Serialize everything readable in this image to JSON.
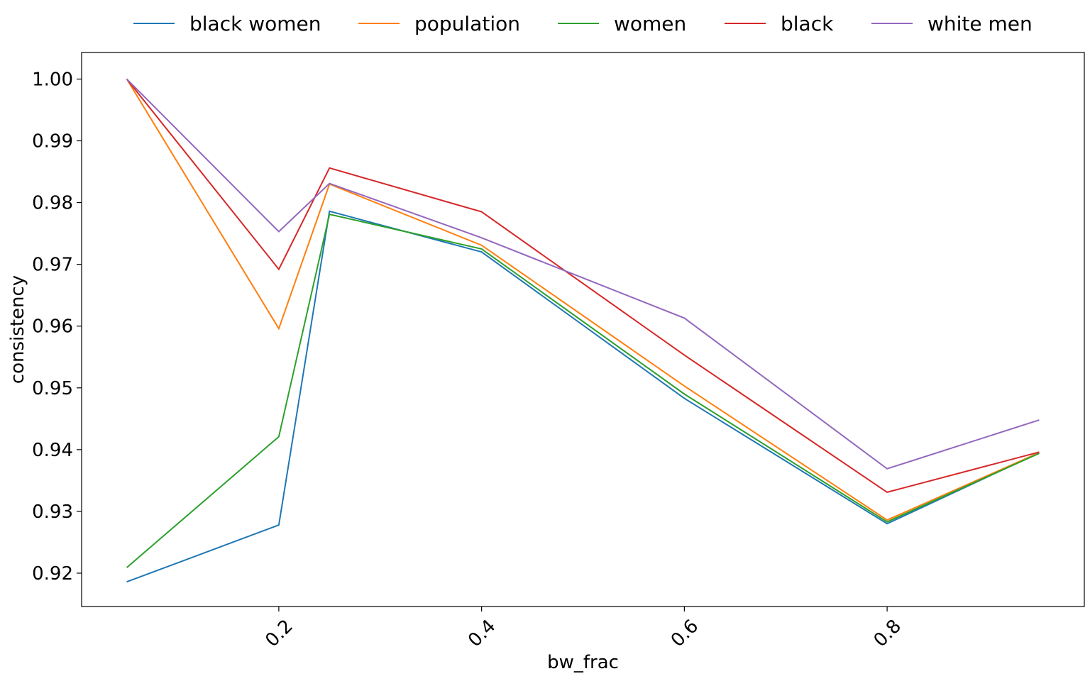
{
  "chart_data": {
    "type": "line",
    "title": "",
    "xlabel": "bw_frac",
    "ylabel": "consistency",
    "xlim": [
      0.0055,
      0.9945
    ],
    "ylim": [
      0.9146,
      1.0043
    ],
    "xticks": [
      0.2,
      0.4,
      0.6,
      0.8
    ],
    "xtick_labels": [
      "0.2",
      "0.4",
      "0.6",
      "0.8"
    ],
    "yticks": [
      0.92,
      0.93,
      0.94,
      0.95,
      0.96,
      0.97,
      0.98,
      0.99,
      1.0
    ],
    "ytick_labels": [
      "0.92",
      "0.93",
      "0.94",
      "0.95",
      "0.96",
      "0.97",
      "0.98",
      "0.99",
      "1.00"
    ],
    "grid": false,
    "legend_position": "top-center, above plot",
    "x": [
      0.05,
      0.2,
      0.25,
      0.4,
      0.6,
      0.8,
      0.95
    ],
    "series": [
      {
        "name": "black women",
        "color": "#1f77b4",
        "values": [
          0.9186,
          0.9278,
          0.9786,
          0.972,
          0.9483,
          0.928,
          0.9395
        ]
      },
      {
        "name": "population",
        "color": "#ff7f0e",
        "values": [
          1.0,
          0.9596,
          0.983,
          0.9731,
          0.9503,
          0.9286,
          0.9395
        ]
      },
      {
        "name": "women",
        "color": "#2ca02c",
        "values": [
          0.9209,
          0.9421,
          0.9781,
          0.9725,
          0.949,
          0.9283,
          0.9394
        ]
      },
      {
        "name": "black",
        "color": "#d62728",
        "values": [
          1.0,
          0.9692,
          0.9856,
          0.9785,
          0.9553,
          0.9331,
          0.9396
        ]
      },
      {
        "name": "white men",
        "color": "#9467bd",
        "values": [
          1.0,
          0.9753,
          0.9831,
          0.9743,
          0.9613,
          0.9369,
          0.9448
        ]
      }
    ]
  }
}
